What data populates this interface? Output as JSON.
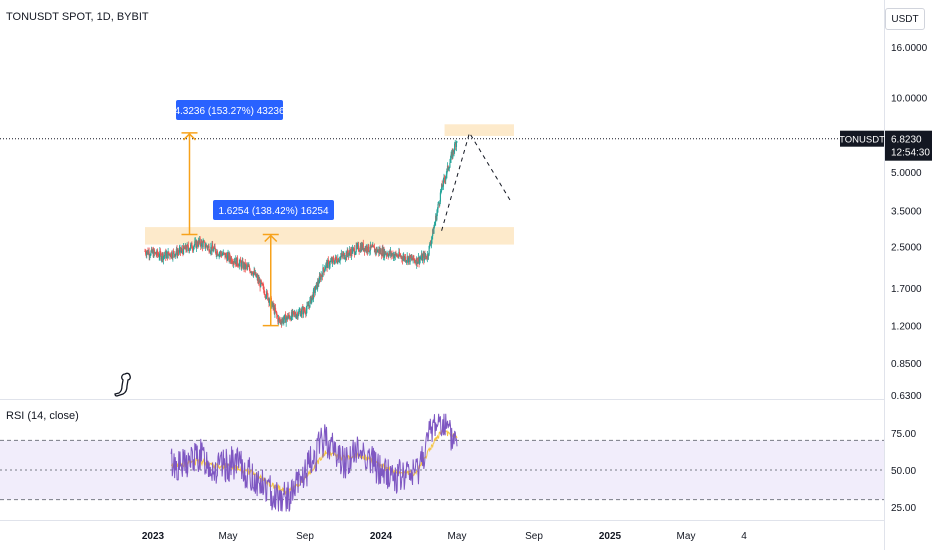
{
  "header": {
    "title": "TONUSDT SPOT, 1D, BYBIT",
    "currency": "USDT"
  },
  "price_axis": {
    "ticks": [
      "16.0000",
      "10.0000",
      "5.0000",
      "3.5000",
      "2.5000",
      "1.7000",
      "1.2000",
      "0.8500",
      "0.6300"
    ],
    "last_price_symbol": "TONUSDT",
    "last_price": "6.8230",
    "countdown": "12:54:30"
  },
  "rsi": {
    "label": "RSI (14, close)",
    "ticks": [
      "75.00",
      "50.00",
      "25.00"
    ]
  },
  "time_axis": {
    "ticks": [
      "2023",
      "May",
      "Sep",
      "2024",
      "May",
      "Sep",
      "2025",
      "May",
      "4"
    ]
  },
  "annotations": {
    "measure_upper": "4.3236 (153.27%) 43236",
    "measure_lower": "1.6254 (138.42%) 16254"
  },
  "chart_data": [
    {
      "type": "line",
      "title": "TONUSDT SPOT, 1D, BYBIT",
      "scale": "log",
      "ylim": [
        0.63,
        16
      ],
      "x": [
        "2022-11-01",
        "2022-12-01",
        "2023-01-01",
        "2023-02-01",
        "2023-03-01",
        "2023-04-01",
        "2023-05-01",
        "2023-06-01",
        "2023-06-15",
        "2023-07-01",
        "2023-08-01",
        "2023-09-01",
        "2023-10-01",
        "2023-11-01",
        "2023-12-01",
        "2024-01-01",
        "2024-02-01",
        "2024-02-20",
        "2024-03-01",
        "2024-03-15",
        "2024-04-01",
        "2024-04-10"
      ],
      "values": [
        2.4,
        2.3,
        2.4,
        2.6,
        2.4,
        2.2,
        2.0,
        1.5,
        1.25,
        1.3,
        1.4,
        2.1,
        2.3,
        2.5,
        2.4,
        2.3,
        2.2,
        2.3,
        2.9,
        4.3,
        5.8,
        6.823
      ],
      "last_price": 6.823,
      "zones": [
        {
          "from": "2022-11-01",
          "to": "2024-07-15",
          "y0": 2.55,
          "y1": 3.0
        },
        {
          "from": "2024-03-20",
          "to": "2024-07-15",
          "y0": 7.0,
          "y1": 7.8
        }
      ],
      "measures": [
        {
          "from_date": "2023-06-01",
          "y0": 1.2,
          "y1": 2.8,
          "label": "1.6254 (138.42%) 16254"
        },
        {
          "from_date": "2023-01-15",
          "y0": 2.8,
          "y1": 7.2,
          "label": "4.3236 (153.27%) 43236"
        }
      ],
      "projection": [
        {
          "x": "2024-03-15",
          "y": 2.9
        },
        {
          "x": "2024-05-01",
          "y": 7.2
        },
        {
          "x": "2024-07-10",
          "y": 3.8
        }
      ]
    },
    {
      "type": "line",
      "title": "RSI (14, close)",
      "ylim": [
        20,
        90
      ],
      "bands": [
        30,
        50,
        70
      ],
      "x": [
        "2022-11-01",
        "2022-12-01",
        "2023-01-01",
        "2023-02-01",
        "2023-03-01",
        "2023-04-01",
        "2023-05-01",
        "2023-06-01",
        "2023-07-01",
        "2023-08-01",
        "2023-09-01",
        "2023-10-01",
        "2023-11-01",
        "2023-12-01",
        "2024-01-01",
        "2024-02-01",
        "2024-03-01",
        "2024-03-15",
        "2024-04-01",
        "2024-04-10"
      ],
      "values": [
        40,
        58,
        52,
        60,
        50,
        55,
        45,
        35,
        30,
        50,
        72,
        55,
        64,
        50,
        45,
        48,
        80,
        85,
        70,
        75
      ],
      "ma": [
        45,
        52,
        54,
        56,
        53,
        52,
        48,
        40,
        35,
        45,
        62,
        58,
        60,
        53,
        48,
        48,
        68,
        76,
        73,
        73
      ]
    }
  ]
}
